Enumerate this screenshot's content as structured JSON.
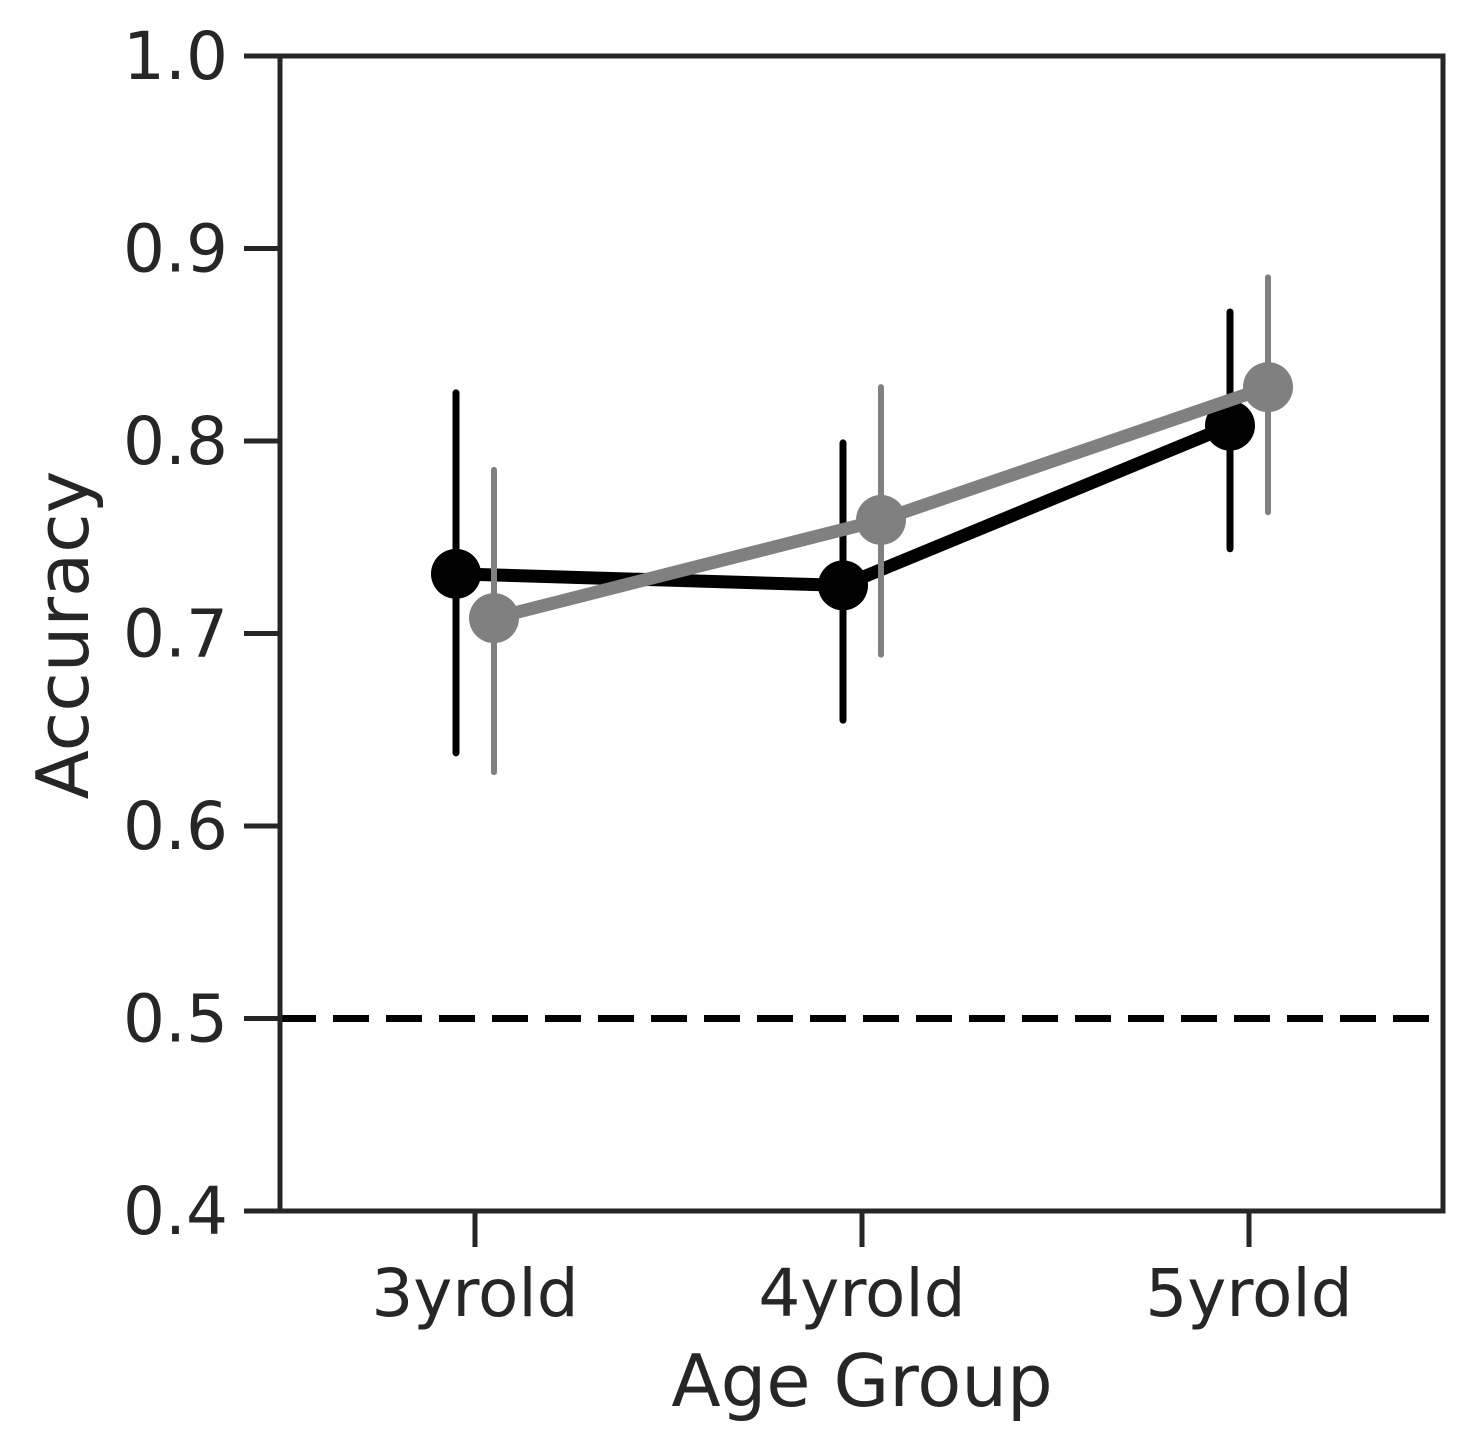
{
  "chart_data": {
    "type": "line",
    "title": "",
    "xlabel": "Age Group",
    "ylabel": "Accuracy",
    "categories": [
      "3yrold",
      "4yrold",
      "5yrold"
    ],
    "ylim": [
      0.4,
      1.0
    ],
    "yticks": [
      "0.4",
      "0.5",
      "0.6",
      "0.7",
      "0.8",
      "0.9",
      "1.0"
    ],
    "grid": false,
    "legend": "none",
    "reference_line": {
      "y": 0.5,
      "style": "dashed",
      "color": "#000000"
    },
    "series": [
      {
        "color": "#000000",
        "values": [
          0.731,
          0.725,
          0.808
        ],
        "error_low": [
          0.638,
          0.655,
          0.744
        ],
        "error_high": [
          0.825,
          0.799,
          0.867
        ]
      },
      {
        "color": "#808080",
        "values": [
          0.708,
          0.759,
          0.828
        ],
        "error_low": [
          0.628,
          0.689,
          0.763
        ],
        "error_high": [
          0.785,
          0.828,
          0.885
        ]
      }
    ]
  }
}
